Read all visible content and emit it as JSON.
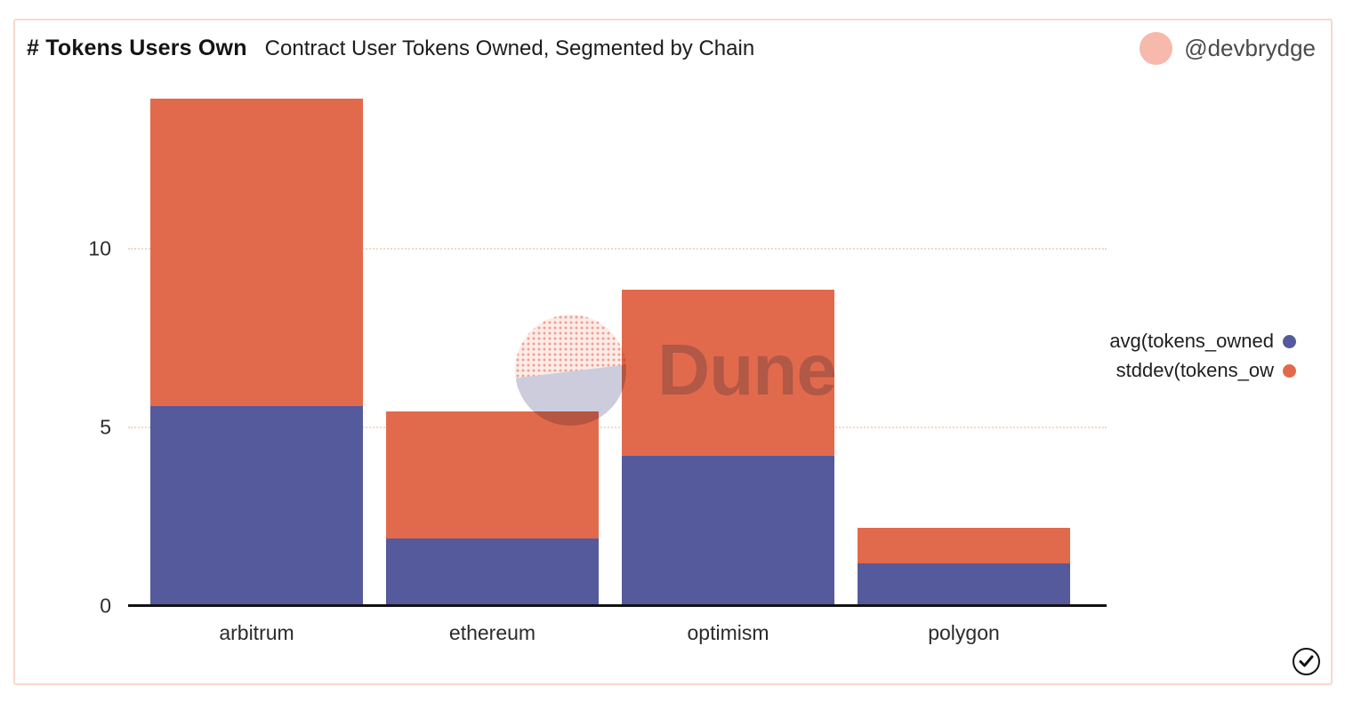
{
  "header": {
    "title": "# Tokens Users Own",
    "subtitle": "Contract User Tokens Owned, Segmented by Chain"
  },
  "author": {
    "handle": "@devbrydge",
    "avatar_color": "#F6B9AC"
  },
  "watermark": {
    "text": "Dune"
  },
  "legend": {
    "position": "right",
    "items": [
      {
        "label": "avg(tokens_owned",
        "color": "#555A9C"
      },
      {
        "label": "stddev(tokens_ow",
        "color": "#E26A4C"
      }
    ]
  },
  "chart_data": {
    "type": "bar",
    "stacked": true,
    "categories": [
      "arbitrum",
      "ethereum",
      "optimism",
      "polygon"
    ],
    "series": [
      {
        "name": "avg(tokens_owned",
        "color": "#555A9C",
        "values": [
          5.6,
          1.9,
          4.2,
          1.2
        ]
      },
      {
        "name": "stddev(tokens_ow",
        "color": "#E26A4C",
        "values": [
          8.6,
          3.55,
          4.65,
          1.0
        ]
      }
    ],
    "stack_totals": [
      14.2,
      5.45,
      8.85,
      2.2
    ],
    "title": "# Tokens Users Own",
    "xlabel": "",
    "ylabel": "",
    "yticks": [
      0,
      5,
      10
    ],
    "ylim": [
      0,
      14.6
    ],
    "grid": "horizontal-dotted",
    "legend_position": "right"
  },
  "footer": {
    "check_icon": "circled-checkmark"
  },
  "colors": {
    "card_border": "#F8D7CC",
    "gridline": "#F6D5CA",
    "axis": "#121212",
    "avatar": "#F6B9AC"
  }
}
